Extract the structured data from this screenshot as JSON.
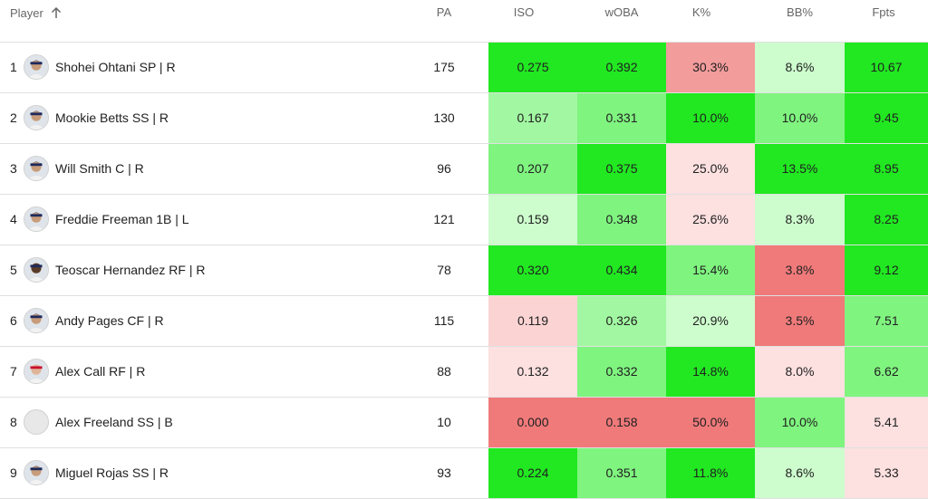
{
  "header": {
    "player": "Player",
    "pa": "PA",
    "iso": "ISO",
    "woba": "wOBA",
    "k": "K%",
    "bb": "BB%",
    "fpts": "Fpts"
  },
  "rows": [
    {
      "idx": "1",
      "name": "Shohei Ohtani SP | R",
      "pa": "175",
      "iso": "0.275",
      "woba": "0.392",
      "k": "30.3%",
      "bb": "8.6%",
      "fpts": "10.67",
      "colors": {
        "iso": "#21e821",
        "woba": "#21e821",
        "k": "#f39c9c",
        "bb": "#cdfccd",
        "fpts": "#21e821"
      },
      "avatar": "player"
    },
    {
      "idx": "2",
      "name": "Mookie Betts SS | R",
      "pa": "130",
      "iso": "0.167",
      "woba": "0.331",
      "k": "10.0%",
      "bb": "10.0%",
      "fpts": "9.45",
      "colors": {
        "iso": "#a2f8a2",
        "woba": "#7ff47f",
        "k": "#21e821",
        "bb": "#7ff47f",
        "fpts": "#21e821"
      },
      "avatar": "player"
    },
    {
      "idx": "3",
      "name": "Will Smith C | R",
      "pa": "96",
      "iso": "0.207",
      "woba": "0.375",
      "k": "25.0%",
      "bb": "13.5%",
      "fpts": "8.95",
      "colors": {
        "iso": "#7ff47f",
        "woba": "#21e821",
        "k": "#fde0e0",
        "bb": "#21e821",
        "fpts": "#21e821"
      },
      "avatar": "player"
    },
    {
      "idx": "4",
      "name": "Freddie Freeman 1B | L",
      "pa": "121",
      "iso": "0.159",
      "woba": "0.348",
      "k": "25.6%",
      "bb": "8.3%",
      "fpts": "8.25",
      "colors": {
        "iso": "#cdfccd",
        "woba": "#7ff47f",
        "k": "#fde0e0",
        "bb": "#cdfccd",
        "fpts": "#21e821"
      },
      "avatar": "player"
    },
    {
      "idx": "5",
      "name": "Teoscar Hernandez RF | R",
      "pa": "78",
      "iso": "0.320",
      "woba": "0.434",
      "k": "15.4%",
      "bb": "3.8%",
      "fpts": "9.12",
      "colors": {
        "iso": "#21e821",
        "woba": "#21e821",
        "k": "#7ff47f",
        "bb": "#f07a7a",
        "fpts": "#21e821"
      },
      "avatar": "player-dark"
    },
    {
      "idx": "6",
      "name": "Andy Pages CF | R",
      "pa": "115",
      "iso": "0.119",
      "woba": "0.326",
      "k": "20.9%",
      "bb": "3.5%",
      "fpts": "7.51",
      "colors": {
        "iso": "#fbd3d3",
        "woba": "#a2f8a2",
        "k": "#cdfccd",
        "bb": "#f07a7a",
        "fpts": "#7ff47f"
      },
      "avatar": "player"
    },
    {
      "idx": "7",
      "name": "Alex Call RF | R",
      "pa": "88",
      "iso": "0.132",
      "woba": "0.332",
      "k": "14.8%",
      "bb": "8.0%",
      "fpts": "6.62",
      "colors": {
        "iso": "#fde0e0",
        "woba": "#7ff47f",
        "k": "#21e821",
        "bb": "#fde0e0",
        "fpts": "#7ff47f"
      },
      "avatar": "player-red"
    },
    {
      "idx": "8",
      "name": "Alex Freeland SS | B",
      "pa": "10",
      "iso": "0.000",
      "woba": "0.158",
      "k": "50.0%",
      "bb": "10.0%",
      "fpts": "5.41",
      "colors": {
        "iso": "#f07a7a",
        "woba": "#f07a7a",
        "k": "#f07a7a",
        "bb": "#7ff47f",
        "fpts": "#fde0e0"
      },
      "avatar": "placeholder"
    },
    {
      "idx": "9",
      "name": "Miguel Rojas SS | R",
      "pa": "93",
      "iso": "0.224",
      "woba": "0.351",
      "k": "11.8%",
      "bb": "8.6%",
      "fpts": "5.33",
      "colors": {
        "iso": "#21e821",
        "woba": "#7ff47f",
        "k": "#21e821",
        "bb": "#cdfccd",
        "fpts": "#fde0e0"
      },
      "avatar": "player"
    }
  ]
}
